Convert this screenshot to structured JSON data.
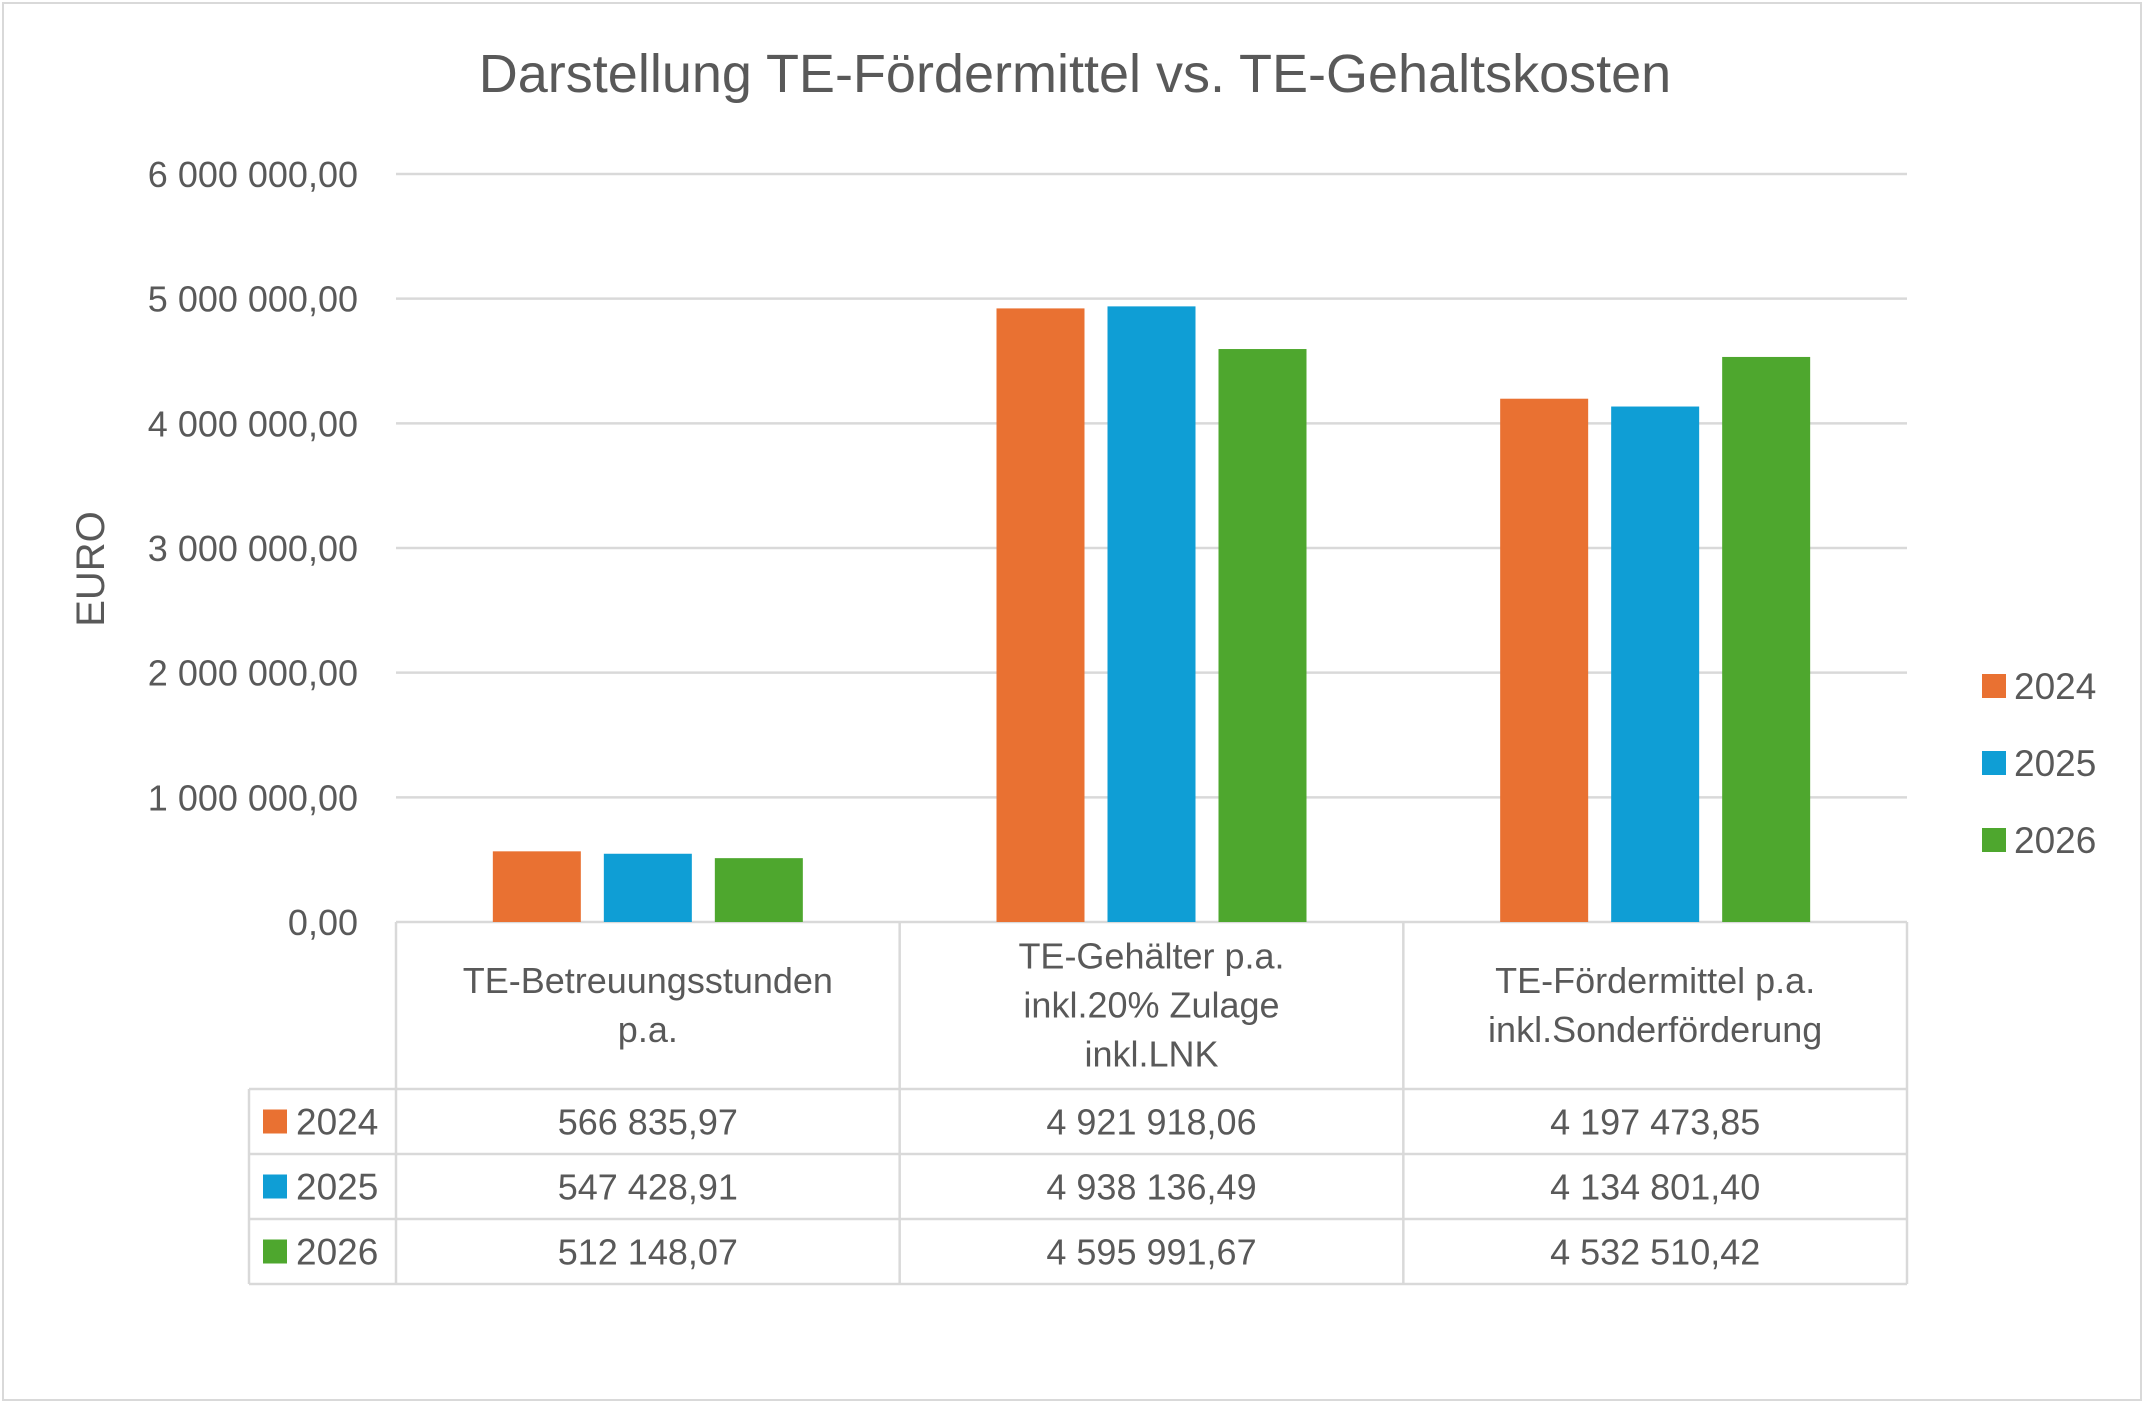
{
  "chart_data": {
    "type": "bar",
    "title": "Darstellung TE-Fördermittel vs. TE-Gehaltskosten",
    "xlabel": "",
    "ylabel": "EURO",
    "ylim": [
      0,
      6000000
    ],
    "yticks": [
      0,
      1000000,
      2000000,
      3000000,
      4000000,
      5000000,
      6000000
    ],
    "ytick_labels": [
      "0,00",
      "1 000 000,00",
      "2 000 000,00",
      "3 000 000,00",
      "4 000 000,00",
      "5 000 000,00",
      "6 000 000,00"
    ],
    "grid": true,
    "legend_position": "right",
    "categories": [
      [
        "TE-Betreuungsstunden",
        "p.a."
      ],
      [
        "TE-Gehälter p.a.",
        "inkl.20% Zulage",
        "inkl.LNK"
      ],
      [
        "TE-Fördermittel p.a.",
        "inkl.Sonderförderung"
      ]
    ],
    "series": [
      {
        "name": "2024",
        "color": "#E97132",
        "values": [
          566835.97,
          4921918.06,
          4197473.85
        ],
        "labels": [
          "566 835,97",
          "4 921 918,06",
          "4 197 473,85"
        ]
      },
      {
        "name": "2025",
        "color": "#0F9ED5",
        "values": [
          547428.91,
          4938136.49,
          4134801.4
        ],
        "labels": [
          "547 428,91",
          "4 938 136,49",
          "4 134 801,40"
        ]
      },
      {
        "name": "2026",
        "color": "#4EA72E",
        "values": [
          512148.07,
          4595991.67,
          4532510.42
        ],
        "labels": [
          "512 148,07",
          "4 595 991,67",
          "4 532 510,42"
        ]
      }
    ],
    "data_table": true
  }
}
